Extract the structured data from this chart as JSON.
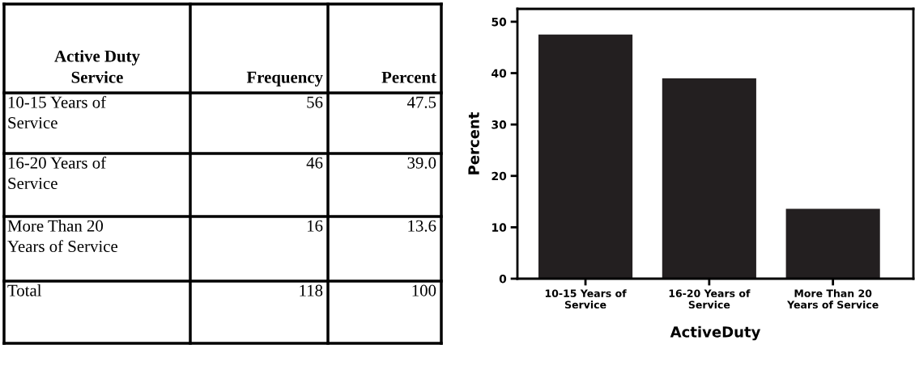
{
  "chart_data": [
    {
      "type": "other",
      "title": "Active Duty\nService",
      "data_labels": true,
      "categories": [
        "10-15 Years of\nService",
        "16-20 Years of\nService",
        "More Than 20\nYears of Service",
        "Total"
      ],
      "series": [
        {
          "name": "Frequency",
          "values": [
            56,
            46,
            16,
            118
          ]
        },
        {
          "name": "Percent",
          "values": [
            47.5,
            39.0,
            13.6,
            100
          ],
          "value_labels": [
            "47.5",
            "39.0",
            "13.6",
            "100"
          ]
        }
      ]
    },
    {
      "type": "bar",
      "categories": [
        "10-15 Years of\nService",
        "16-20 Years of\nService",
        "More Than 20\nYears of Service"
      ],
      "values": [
        47.5,
        39.0,
        13.6
      ],
      "color": "#231f20",
      "ylim": [
        0,
        52.5
      ],
      "yticks": [
        0,
        10,
        20,
        30,
        40,
        50
      ],
      "xlabel": "ActiveDuty",
      "ylabel": "Percent",
      "grid": false,
      "legend": false
    }
  ]
}
